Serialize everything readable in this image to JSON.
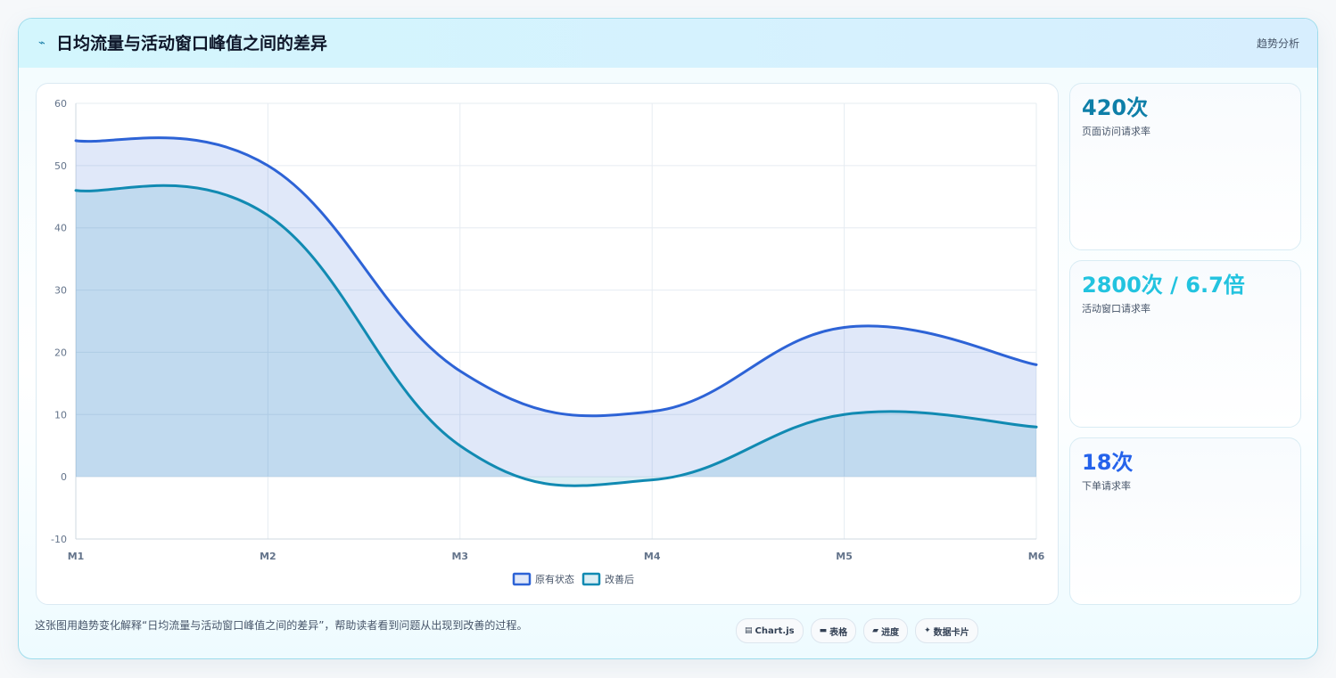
{
  "header": {
    "icon": "trend-line-icon",
    "title": "日均流量与活动窗口峰值之间的差异",
    "tag": "趋势分析"
  },
  "chart_data": {
    "type": "area",
    "categories": [
      "M1",
      "M2",
      "M3",
      "M4",
      "M5",
      "M6"
    ],
    "series": [
      {
        "name": "原有状态",
        "values": [
          54,
          50,
          17,
          10.5,
          24,
          18
        ],
        "color": "#2d63d6",
        "fill": "rgba(45,99,214,0.15)"
      },
      {
        "name": "改善后",
        "values": [
          46,
          42,
          5,
          -0.5,
          10,
          8
        ],
        "color": "#118ab2",
        "fill": "rgba(17,138,178,0.15)"
      }
    ],
    "ylim": [
      -10,
      60
    ],
    "yticks": [
      -10,
      0,
      10,
      20,
      30,
      40,
      50,
      60
    ],
    "grid": true,
    "legend": "bottom",
    "smooth": true
  },
  "stats": [
    {
      "value": "420次",
      "label": "页面访问请求率",
      "color": "#0e7fa8"
    },
    {
      "value": "2800次 / 6.7倍",
      "label": "活动窗口请求率",
      "color": "#22c3df"
    },
    {
      "value": "18次",
      "label": "下单请求率",
      "color": "#2563eb"
    }
  ],
  "footnote": "这张图用趋势变化解释“日均流量与活动窗口峰值之间的差异”，帮助读者看到问题从出现到改善的过程。",
  "chips": [
    {
      "icon": "chart-icon",
      "glyph": "▤",
      "label": "Chart.js"
    },
    {
      "icon": "table-icon",
      "glyph": "▬",
      "label": "表格"
    },
    {
      "icon": "progress-icon",
      "glyph": "▰",
      "label": "进度"
    },
    {
      "icon": "data-card-icon",
      "glyph": "✦",
      "label": "数据卡片"
    }
  ]
}
